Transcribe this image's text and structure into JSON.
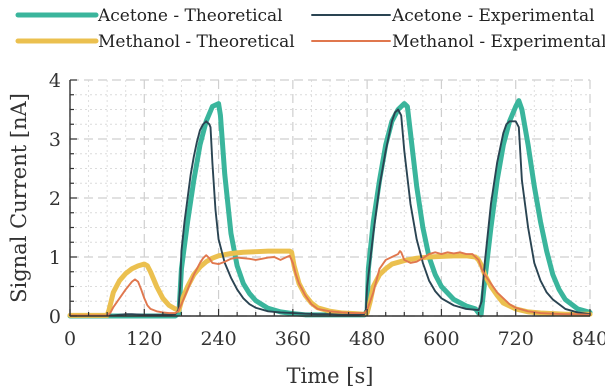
{
  "chart_data": {
    "type": "line",
    "xlabel": "Time [s]",
    "ylabel": "Signal Current [nA]",
    "xlim": [
      0,
      840
    ],
    "ylim": [
      0,
      4
    ],
    "xticks": [
      0,
      120,
      240,
      360,
      480,
      600,
      720,
      840
    ],
    "yticks": [
      0,
      1,
      2,
      3,
      4
    ],
    "xtick_labels": [
      "0",
      "120",
      "240",
      "360",
      "480",
      "600",
      "720",
      "840"
    ],
    "ytick_labels": [
      "0",
      "1",
      "2",
      "3",
      "4"
    ],
    "grid": true,
    "legend_position": "top",
    "series": [
      {
        "name": "Acetone - Theoretical",
        "color": "#3ab59c",
        "style": "thick",
        "x": [
          0,
          170,
          176,
          180,
          190,
          200,
          210,
          220,
          230,
          240,
          243,
          250,
          260,
          270,
          280,
          290,
          300,
          320,
          340,
          360,
          380,
          400,
          420,
          440,
          460,
          476,
          480,
          482,
          490,
          500,
          510,
          520,
          530,
          540,
          545,
          550,
          560,
          570,
          580,
          590,
          600,
          620,
          640,
          655,
          660,
          664,
          670,
          680,
          690,
          700,
          710,
          720,
          725,
          730,
          740,
          750,
          760,
          770,
          780,
          790,
          800,
          820,
          840
        ],
        "y": [
          0,
          0,
          0.05,
          0.8,
          1.6,
          2.3,
          2.9,
          3.3,
          3.55,
          3.6,
          3.4,
          2.4,
          1.4,
          0.85,
          0.55,
          0.38,
          0.26,
          0.13,
          0.07,
          0.04,
          0.02,
          0.02,
          0.02,
          0.02,
          0.02,
          0.02,
          0.1,
          0.8,
          1.6,
          2.3,
          2.9,
          3.3,
          3.5,
          3.6,
          3.55,
          3.1,
          2.2,
          1.5,
          1.0,
          0.7,
          0.5,
          0.28,
          0.17,
          0.12,
          0.05,
          0.02,
          0.6,
          1.5,
          2.3,
          2.9,
          3.3,
          3.55,
          3.65,
          3.5,
          2.9,
          2.2,
          1.6,
          1.1,
          0.7,
          0.45,
          0.28,
          0.12,
          0.06
        ]
      },
      {
        "name": "Acetone - Experimental",
        "color": "#2a4452",
        "style": "thin",
        "x": [
          0,
          40,
          60,
          70,
          80,
          90,
          100,
          120,
          140,
          160,
          170,
          175,
          178,
          180,
          185,
          190,
          195,
          200,
          205,
          210,
          215,
          220,
          225,
          227,
          230,
          235,
          240,
          250,
          260,
          270,
          280,
          290,
          300,
          320,
          340,
          360,
          380,
          400,
          420,
          440,
          460,
          475,
          478,
          480,
          490,
          500,
          510,
          520,
          525,
          530,
          535,
          540,
          550,
          560,
          570,
          580,
          590,
          600,
          620,
          640,
          660,
          665,
          670,
          680,
          690,
          700,
          705,
          710,
          720,
          725,
          730,
          740,
          750,
          760,
          770,
          780,
          800,
          820,
          840
        ],
        "y": [
          0.01,
          0.01,
          0.01,
          0.01,
          0.02,
          0.03,
          0.03,
          0.02,
          0.02,
          0.02,
          0.03,
          0.1,
          0.5,
          1.1,
          1.6,
          2.0,
          2.4,
          2.7,
          2.95,
          3.15,
          3.25,
          3.3,
          3.25,
          3.2,
          2.6,
          1.8,
          1.3,
          0.9,
          0.65,
          0.45,
          0.3,
          0.2,
          0.14,
          0.08,
          0.06,
          0.05,
          0.04,
          0.03,
          0.03,
          0.02,
          0.02,
          0.03,
          0.1,
          0.5,
          1.4,
          2.2,
          2.8,
          3.3,
          3.45,
          3.5,
          3.4,
          2.8,
          1.9,
          1.3,
          0.9,
          0.6,
          0.42,
          0.3,
          0.18,
          0.12,
          0.1,
          0.25,
          0.9,
          1.9,
          2.6,
          3.1,
          3.25,
          3.3,
          3.3,
          3.2,
          2.3,
          1.5,
          0.9,
          0.6,
          0.4,
          0.28,
          0.12,
          0.06,
          0.03
        ]
      },
      {
        "name": "Methanol - Theoretical",
        "color": "#ebc04f",
        "style": "thick",
        "x": [
          0,
          60,
          63,
          70,
          80,
          90,
          100,
          110,
          120,
          125,
          130,
          140,
          150,
          160,
          170,
          176,
          180,
          190,
          200,
          210,
          220,
          230,
          240,
          260,
          280,
          300,
          320,
          340,
          355,
          358,
          362,
          370,
          380,
          390,
          400,
          420,
          440,
          460,
          475,
          480,
          485,
          490,
          500,
          510,
          520,
          540,
          560,
          580,
          600,
          620,
          640,
          655,
          660,
          665,
          670,
          680,
          690,
          700,
          720,
          740,
          760,
          780,
          800,
          820,
          840
        ],
        "y": [
          0.01,
          0.01,
          0.1,
          0.4,
          0.6,
          0.72,
          0.8,
          0.85,
          0.88,
          0.85,
          0.75,
          0.5,
          0.3,
          0.18,
          0.12,
          0.1,
          0.25,
          0.5,
          0.7,
          0.83,
          0.92,
          0.98,
          1.02,
          1.06,
          1.08,
          1.09,
          1.1,
          1.1,
          1.1,
          1.08,
          0.85,
          0.55,
          0.35,
          0.22,
          0.14,
          0.08,
          0.05,
          0.04,
          0.03,
          0.05,
          0.25,
          0.5,
          0.7,
          0.8,
          0.88,
          0.94,
          0.98,
          1.0,
          1.01,
          1.02,
          1.02,
          1.0,
          0.95,
          0.85,
          0.7,
          0.5,
          0.35,
          0.22,
          0.12,
          0.07,
          0.05,
          0.04,
          0.03,
          0.03,
          0.03
        ]
      },
      {
        "name": "Methanol - Experimental",
        "color": "#e0774e",
        "style": "thin",
        "x": [
          0,
          60,
          65,
          70,
          80,
          90,
          100,
          105,
          110,
          115,
          120,
          125,
          130,
          140,
          150,
          160,
          170,
          175,
          180,
          190,
          200,
          210,
          215,
          220,
          225,
          230,
          240,
          250,
          260,
          270,
          280,
          290,
          300,
          310,
          320,
          330,
          340,
          350,
          355,
          360,
          365,
          370,
          380,
          390,
          400,
          420,
          440,
          460,
          475,
          480,
          490,
          500,
          510,
          520,
          530,
          533,
          535,
          540,
          550,
          560,
          570,
          580,
          590,
          600,
          610,
          620,
          630,
          640,
          650,
          660,
          665,
          670,
          680,
          690,
          700,
          710,
          720,
          740,
          760,
          780,
          800,
          820,
          840
        ],
        "y": [
          0.01,
          0.01,
          0.05,
          0.15,
          0.3,
          0.45,
          0.58,
          0.62,
          0.58,
          0.45,
          0.3,
          0.18,
          0.12,
          0.08,
          0.06,
          0.05,
          0.05,
          0.08,
          0.2,
          0.45,
          0.7,
          0.9,
          0.98,
          1.03,
          0.98,
          0.9,
          0.88,
          0.92,
          0.97,
          0.99,
          0.98,
          0.97,
          0.95,
          0.97,
          0.99,
          1.0,
          0.95,
          1.0,
          1.02,
          0.9,
          0.7,
          0.55,
          0.35,
          0.2,
          0.12,
          0.08,
          0.06,
          0.05,
          0.05,
          0.1,
          0.4,
          0.8,
          0.95,
          1.0,
          1.05,
          1.1,
          1.08,
          0.95,
          0.9,
          0.92,
          0.98,
          1.05,
          1.08,
          1.05,
          1.08,
          1.06,
          1.08,
          1.05,
          1.05,
          0.95,
          0.8,
          0.7,
          0.55,
          0.4,
          0.3,
          0.2,
          0.14,
          0.08,
          0.05,
          0.04,
          0.03,
          0.03,
          0.02
        ]
      }
    ]
  }
}
